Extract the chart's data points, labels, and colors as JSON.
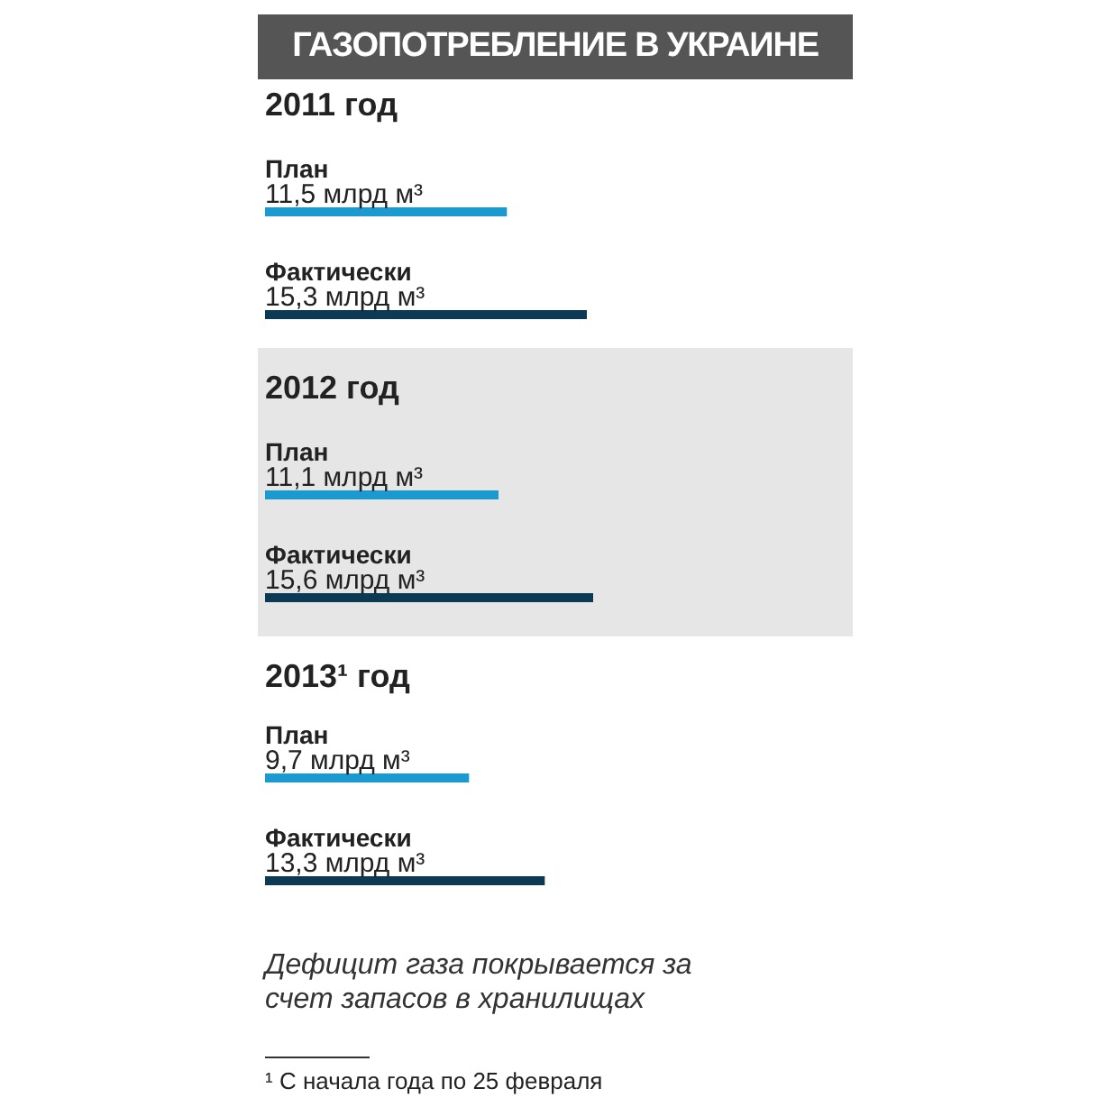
{
  "chart_data": [
    {
      "type": "bar",
      "title": "ГАЗОПОТРЕБЛЕНИЕ В УКРАИНЕ",
      "subtitle": "2011 год",
      "orientation": "horizontal",
      "categories": [
        "План",
        "Фактически"
      ],
      "values": [
        11.5,
        15.3
      ],
      "colors": [
        "#1b9ad0",
        "#0c3a55"
      ],
      "value_labels": [
        "11,5 млрд м³",
        "15,3 млрд м³"
      ]
    },
    {
      "type": "bar",
      "subtitle": "2012 год",
      "orientation": "horizontal",
      "categories": [
        "План",
        "Фактически"
      ],
      "values": [
        11.1,
        15.6
      ],
      "colors": [
        "#1b9ad0",
        "#0c3a55"
      ],
      "value_labels": [
        "11,1 млрд м³",
        "15,6 млрд м³"
      ]
    },
    {
      "type": "bar",
      "subtitle": "2013¹ год",
      "orientation": "horizontal",
      "categories": [
        "План",
        "Фактически"
      ],
      "values": [
        9.7,
        13.3
      ],
      "colors": [
        "#1b9ad0",
        "#0c3a55"
      ],
      "value_labels": [
        "9,7 млрд м³",
        "13,3 млрд м³"
      ],
      "annotations": [
        "Дефицит газа покрывается за счет запасов в хранилищах",
        "¹ С начала года по 25 февраля"
      ]
    }
  ]
}
